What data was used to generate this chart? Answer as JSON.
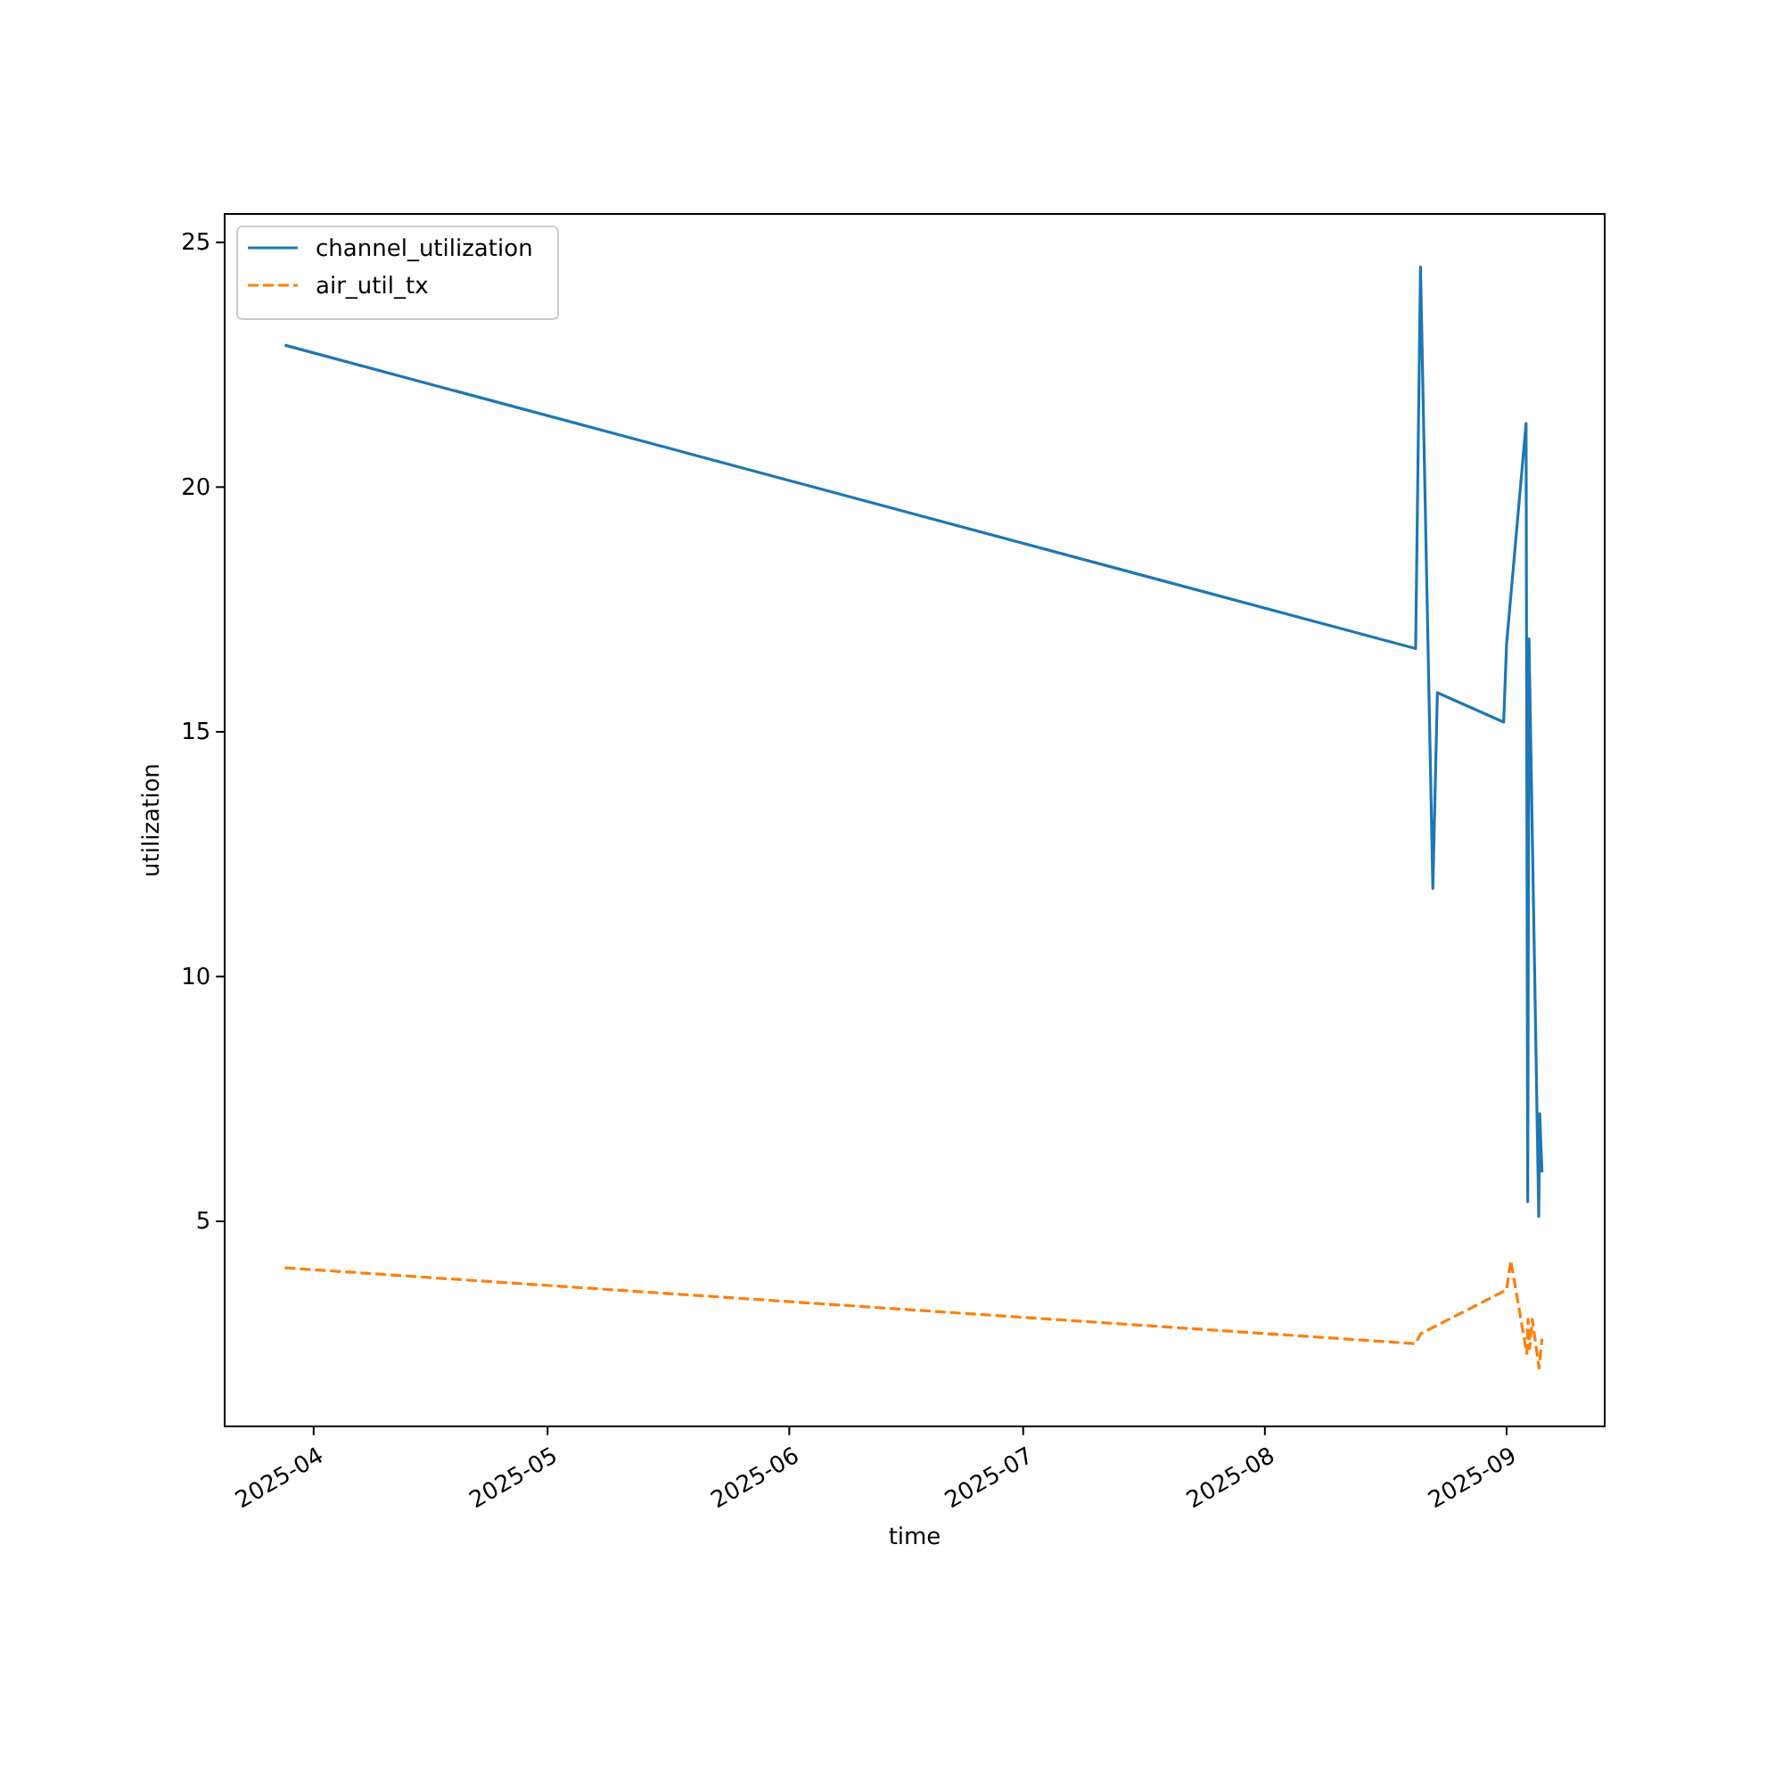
{
  "chart_data": {
    "type": "line",
    "xlabel": "time",
    "ylabel": "utilization",
    "xlim": [
      "2025-03-20T14:00",
      "2025-09-13T14:00"
    ],
    "xticks": [
      {
        "value": "2025-04-01",
        "label": "2025-04"
      },
      {
        "value": "2025-05-01",
        "label": "2025-05"
      },
      {
        "value": "2025-06-01",
        "label": "2025-06"
      },
      {
        "value": "2025-07-01",
        "label": "2025-07"
      },
      {
        "value": "2025-08-01",
        "label": "2025-08"
      },
      {
        "value": "2025-09-01",
        "label": "2025-09"
      }
    ],
    "ylim": [
      0.81,
      25.58
    ],
    "yticks": [
      5,
      10,
      15,
      20,
      25
    ],
    "legend": "top left",
    "grid": false,
    "series": [
      {
        "name": "channel_utilization",
        "color": "#1f77b4",
        "line_style": "solid",
        "x": [
          "2025-03-28T07:00",
          "2025-08-20T08:00",
          "2025-08-20T23:00",
          "2025-08-22T13:00",
          "2025-08-23T03:00",
          "2025-08-31T15:00",
          "2025-09-01T00:00",
          "2025-09-03T12:00",
          "2025-09-03T17:00",
          "2025-09-03T21:00",
          "2025-09-05T03:00",
          "2025-09-05T06:00",
          "2025-09-05T13:00"
        ],
        "values": [
          22.9,
          16.7,
          24.5,
          11.8,
          15.8,
          15.2,
          16.8,
          21.3,
          5.4,
          16.9,
          5.1,
          7.2,
          6.0
        ]
      },
      {
        "name": "air_util_tx",
        "color": "#ff7f0e",
        "line_style": "dashed",
        "x": [
          "2025-03-28T07:00",
          "2025-08-20T08:00",
          "2025-08-20T23:00",
          "2025-09-01T00:00",
          "2025-09-01T13:00",
          "2025-09-03T14:00",
          "2025-09-03T18:00",
          "2025-09-03T23:00",
          "2025-09-04T07:00",
          "2025-09-05T04:00",
          "2025-09-05T13:00"
        ],
        "values": [
          4.05,
          2.5,
          2.7,
          3.6,
          4.2,
          2.3,
          3.0,
          2.4,
          3.0,
          2.0,
          2.6
        ]
      }
    ]
  }
}
